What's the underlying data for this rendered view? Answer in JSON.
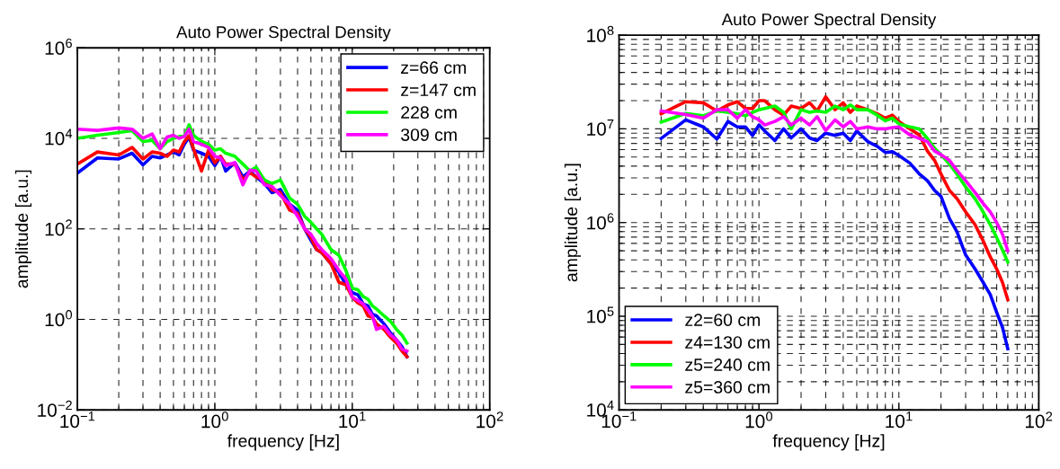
{
  "chart_data": [
    {
      "type": "line",
      "title": "Auto Power Spectral Density",
      "xlabel": "frequency [Hz]",
      "ylabel": "amplitude [a.u.]",
      "log": "xy",
      "grid": true,
      "legend": "top right",
      "line_style": "solid",
      "marker": "none",
      "xlim": [
        0.1,
        100
      ],
      "ylim": [
        0.01,
        1000000
      ],
      "xticks": [
        {
          "value": 0.1,
          "label": "10$^{−1}$"
        },
        {
          "value": 1,
          "label": "10$^{0}$"
        },
        {
          "value": 10,
          "label": "10$^{1}$"
        },
        {
          "value": 100,
          "label": "10$^{2}$"
        }
      ],
      "yticks": [
        {
          "value": 0.01,
          "label": "10$^{−2}$"
        },
        {
          "value": 1,
          "label": "10$^{0}$"
        },
        {
          "value": 100,
          "label": "10$^{2}$"
        },
        {
          "value": 10000,
          "label": "10$^{4}$"
        },
        {
          "value": 1000000,
          "label": "10$^{6}$"
        }
      ],
      "x": [
        0.1,
        0.14,
        0.2,
        0.25,
        0.3,
        0.35,
        0.4,
        0.45,
        0.5,
        0.55,
        0.6,
        0.65,
        0.7,
        0.8,
        0.9,
        1.0,
        1.1,
        1.2,
        1.4,
        1.6,
        1.8,
        2.0,
        2.3,
        2.6,
        3.0,
        3.5,
        4,
        4.5,
        5,
        5.5,
        6,
        7,
        8,
        9,
        10,
        11,
        12,
        13,
        14,
        15,
        17,
        19,
        21,
        23,
        25
      ],
      "series": [
        {
          "name": "z=66 cm",
          "color": "#0000ff",
          "values": [
            1700,
            3700,
            3500,
            4700,
            2600,
            4000,
            3700,
            4300,
            5000,
            4300,
            7400,
            10700,
            5500,
            4700,
            4000,
            2500,
            4000,
            1900,
            2900,
            1400,
            1900,
            1400,
            1000,
            630,
            740,
            350,
            260,
            100,
            56,
            35,
            30,
            17,
            11,
            5.8,
            3.9,
            3.5,
            2.2,
            2.0,
            1.3,
            1.2,
            0.8,
            0.5,
            0.35,
            0.25,
            0.15
          ]
        },
        {
          "name": "z=147 cm",
          "color": "#ff0000",
          "values": [
            2700,
            5000,
            4300,
            6300,
            3500,
            5000,
            4700,
            4000,
            5500,
            5000,
            8500,
            11500,
            5900,
            1900,
            5500,
            2900,
            4000,
            2700,
            2700,
            1200,
            1750,
            1400,
            1200,
            740,
            630,
            260,
            220,
            100,
            65,
            35,
            30,
            17,
            6.6,
            5.8,
            3.1,
            2.3,
            2.0,
            1.2,
            1.1,
            0.8,
            0.6,
            0.4,
            0.3,
            0.2,
            0.15
          ]
        },
        {
          "name": "228 cm",
          "color": "#00ff00",
          "values": [
            10000,
            11700,
            13500,
            14700,
            8500,
            9000,
            5900,
            8500,
            10000,
            11000,
            11000,
            20000,
            11700,
            8500,
            7400,
            5500,
            5900,
            4700,
            4000,
            2700,
            1900,
            2300,
            1200,
            1000,
            1200,
            480,
            350,
            190,
            140,
            100,
            76,
            35,
            26,
            12,
            4.9,
            4.5,
            3.2,
            2.8,
            2.0,
            1.7,
            1.2,
            0.9,
            0.6,
            0.45,
            0.3
          ]
        },
        {
          "name": "309 cm",
          "color": "#ff00ff",
          "values": [
            16000,
            15000,
            17000,
            16000,
            10000,
            12500,
            5900,
            10700,
            11700,
            10000,
            11000,
            16000,
            8500,
            7400,
            6300,
            4000,
            3700,
            2500,
            2900,
            940,
            2000,
            1900,
            940,
            870,
            550,
            350,
            190,
            100,
            76,
            48,
            35,
            22,
            12,
            7.8,
            3.1,
            2.6,
            2.2,
            1.6,
            1.2,
            0.6,
            0.7,
            0.45,
            0.35,
            0.22,
            0.2
          ]
        }
      ]
    },
    {
      "type": "line",
      "title": "Auto Power Spectral Density",
      "xlabel": "frequency [Hz]",
      "ylabel": "amplitude [a.u.]",
      "log": "xy",
      "grid": true,
      "legend": "bottom left",
      "line_style": "solid",
      "marker": "none",
      "xlim": [
        0.1,
        100
      ],
      "ylim": [
        10000,
        100000000
      ],
      "xticks": [
        {
          "value": 0.1,
          "label": "10$^{−1}$"
        },
        {
          "value": 1,
          "label": "10$^{0}$"
        },
        {
          "value": 10,
          "label": "10$^{1}$"
        },
        {
          "value": 100,
          "label": "10$^{2}$"
        }
      ],
      "yticks": [
        {
          "value": 10000,
          "label": "10$^{4}$"
        },
        {
          "value": 100000,
          "label": "10$^{5}$"
        },
        {
          "value": 1000000,
          "label": "10$^{6}$"
        },
        {
          "value": 10000000,
          "label": "10$^{7}$"
        },
        {
          "value": 100000000,
          "label": "10$^{8}$"
        }
      ],
      "x": [
        0.2,
        0.3,
        0.4,
        0.5,
        0.6,
        0.7,
        0.8,
        0.9,
        1.0,
        1.1,
        1.3,
        1.5,
        1.7,
        2.0,
        2.3,
        2.6,
        3.0,
        3.5,
        4,
        4.5,
        5,
        6,
        7,
        8,
        9,
        10,
        12,
        14,
        16,
        18,
        20,
        23,
        26,
        30,
        35,
        40,
        45,
        50,
        55,
        60
      ],
      "series": [
        {
          "name": "z2=60 cm",
          "color": "#0000ff",
          "values": [
            7900000,
            12500000,
            10500000,
            7800000,
            12000000,
            10500000,
            10500000,
            8500000,
            11000000,
            9500000,
            7500000,
            10000000,
            8000000,
            10000000,
            8000000,
            7500000,
            9000000,
            8500000,
            9000000,
            7500000,
            9500000,
            7300000,
            6500000,
            5600000,
            5700000,
            5200000,
            4300000,
            3300000,
            2800000,
            2200000,
            1900000,
            1100000,
            800000,
            450000,
            320000,
            230000,
            170000,
            110000,
            76000,
            45000
          ]
        },
        {
          "name": "z4=130 cm",
          "color": "#ff0000",
          "values": [
            14500000,
            19500000,
            19000000,
            15500000,
            18000000,
            19500000,
            16500000,
            16500000,
            20000000,
            20000000,
            16000000,
            14000000,
            17500000,
            16500000,
            19000000,
            15500000,
            22000000,
            16000000,
            19000000,
            15000000,
            17500000,
            16000000,
            14500000,
            13000000,
            14000000,
            12000000,
            10000000,
            8600000,
            5800000,
            4600000,
            3300000,
            2200000,
            1800000,
            1300000,
            950000,
            640000,
            430000,
            320000,
            230000,
            150000
          ]
        },
        {
          "name": "z5=240 cm",
          "color": "#00ff00",
          "values": [
            11800000,
            14600000,
            13800000,
            15500000,
            15000000,
            14500000,
            13800000,
            15000000,
            16000000,
            16500000,
            17500000,
            15000000,
            10000000,
            16000000,
            15000000,
            15500000,
            15000000,
            17500000,
            16000000,
            18000000,
            16000000,
            16000000,
            14000000,
            12200000,
            13000000,
            11300000,
            10500000,
            10000000,
            7900000,
            6200000,
            5300000,
            4200000,
            3300000,
            2400000,
            1800000,
            1300000,
            950000,
            690000,
            510000,
            380000
          ]
        },
        {
          "name": "z5=360 cm",
          "color": "#ff00ff",
          "values": [
            15500000,
            14200000,
            13000000,
            16000000,
            16000000,
            13000000,
            16000000,
            13500000,
            12500000,
            11000000,
            12000000,
            13500000,
            11000000,
            13000000,
            11000000,
            13500000,
            9600000,
            12500000,
            10500000,
            12000000,
            10000000,
            10500000,
            10000000,
            10000000,
            10300000,
            10500000,
            8600000,
            7900000,
            7300000,
            5800000,
            5300000,
            4600000,
            3600000,
            2800000,
            2100000,
            1600000,
            1300000,
            1000000,
            750000,
            500000
          ]
        }
      ]
    }
  ]
}
